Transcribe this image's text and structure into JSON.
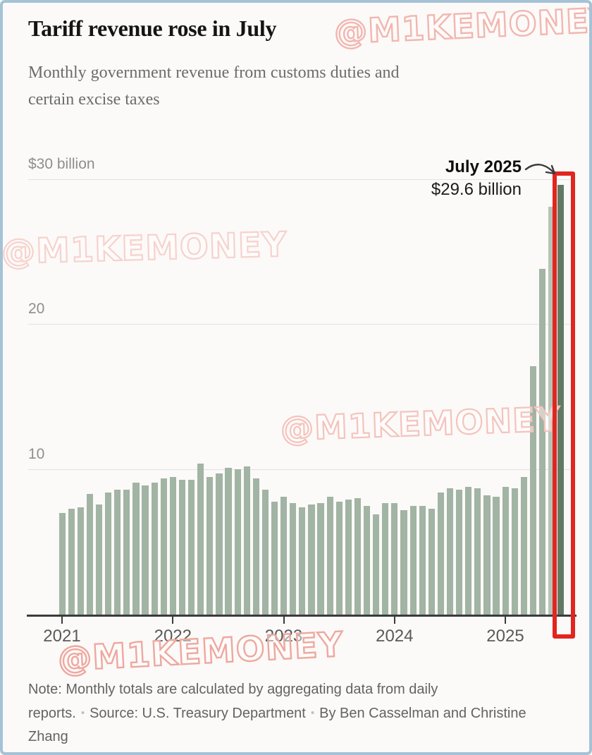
{
  "page": {
    "title": "Tariff revenue rose in July",
    "subtitle": "Monthly government revenue from customs duties and\ncertain excise taxes",
    "watermark": "@M1KEMONEY"
  },
  "annotation": {
    "label": "July 2025",
    "value": "$29.6 billion"
  },
  "footer": {
    "note": "Note: Monthly totals are calculated by aggregating data from daily reports.",
    "source": "Source: U.S. Treasury Department",
    "byline": "By Ben Casselman and Christine Zhang",
    "separator": "•"
  },
  "colors": {
    "bar": "#a2b4a4",
    "bar_june_2025": "#b8c3b7",
    "bar_highlight": "#627a64",
    "highlight_box": "#e1251f",
    "watermark_pink": "#f5c3bd",
    "frame_border": "#a5c2d6",
    "gridline": "#e2e2e0",
    "axis": "#3b3b3b"
  },
  "chart_data": {
    "type": "bar",
    "title": "Tariff revenue rose in July",
    "subtitle": "Monthly government revenue from customs duties and certain excise taxes",
    "unit": "billions of US dollars",
    "ylim": [
      0,
      32
    ],
    "grid": true,
    "y_ticks": [
      {
        "value": 30,
        "label": "$30 billion"
      },
      {
        "value": 20,
        "label": "20"
      },
      {
        "value": 10,
        "label": "10"
      }
    ],
    "x_ticks": [
      "2021",
      "2022",
      "2023",
      "2024",
      "2025"
    ],
    "annotation": {
      "category": "Jul 2025",
      "label": "July 2025",
      "value_label": "$29.6 billion"
    },
    "highlight_category": "Jul 2025",
    "categories": [
      "Jan 2021",
      "Feb 2021",
      "Mar 2021",
      "Apr 2021",
      "May 2021",
      "Jun 2021",
      "Jul 2021",
      "Aug 2021",
      "Sep 2021",
      "Oct 2021",
      "Nov 2021",
      "Dec 2021",
      "Jan 2022",
      "Feb 2022",
      "Mar 2022",
      "Apr 2022",
      "May 2022",
      "Jun 2022",
      "Jul 2022",
      "Aug 2022",
      "Sep 2022",
      "Oct 2022",
      "Nov 2022",
      "Dec 2022",
      "Jan 2023",
      "Feb 2023",
      "Mar 2023",
      "Apr 2023",
      "May 2023",
      "Jun 2023",
      "Jul 2023",
      "Aug 2023",
      "Sep 2023",
      "Oct 2023",
      "Nov 2023",
      "Dec 2023",
      "Jan 2024",
      "Feb 2024",
      "Mar 2024",
      "Apr 2024",
      "May 2024",
      "Jun 2024",
      "Jul 2024",
      "Aug 2024",
      "Sep 2024",
      "Oct 2024",
      "Nov 2024",
      "Dec 2024",
      "Jan 2025",
      "Feb 2025",
      "Mar 2025",
      "Apr 2025",
      "May 2025",
      "Jun 2025",
      "Jul 2025"
    ],
    "values": [
      7.0,
      7.3,
      7.4,
      8.3,
      7.6,
      8.4,
      8.6,
      8.6,
      9.1,
      8.9,
      9.1,
      9.4,
      9.5,
      9.3,
      9.3,
      10.4,
      9.5,
      9.7,
      10.1,
      10.0,
      10.2,
      9.4,
      8.6,
      7.8,
      8.1,
      7.7,
      7.4,
      7.6,
      7.7,
      8.1,
      7.8,
      7.9,
      8.0,
      7.5,
      6.9,
      7.7,
      7.7,
      7.2,
      7.5,
      7.5,
      7.3,
      8.4,
      8.7,
      8.6,
      8.8,
      8.7,
      8.2,
      8.1,
      8.8,
      8.7,
      9.5,
      17.1,
      23.8,
      28.1,
      29.6
    ]
  }
}
